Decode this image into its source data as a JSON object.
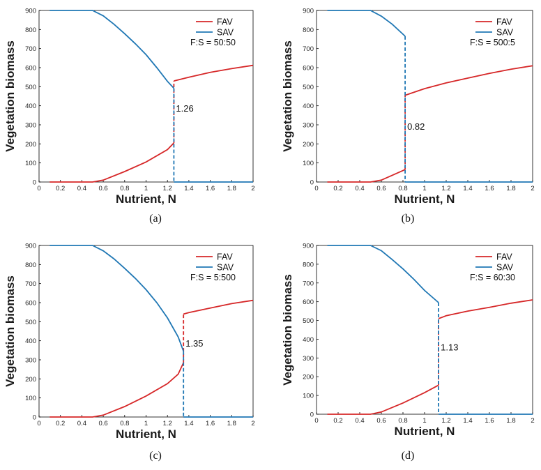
{
  "colors": {
    "fav": "#d62728",
    "sav": "#1f77b4",
    "axis": "#000000"
  },
  "chart_data": [
    {
      "caption": "(a)",
      "type": "line",
      "xlabel": "Nutrient, N",
      "ylabel": "Vegetation biomass",
      "xlim": [
        0,
        2
      ],
      "ylim": [
        0,
        900
      ],
      "xticks": [
        "0",
        "0.2",
        "0.4",
        "0.6",
        "0.8",
        "1",
        "1.2",
        "1.4",
        "1.6",
        "1.8",
        "2"
      ],
      "yticks": [
        "0",
        "100",
        "200",
        "300",
        "400",
        "500",
        "600",
        "700",
        "800",
        "900"
      ],
      "ratio_label": "F:S = 50:50",
      "threshold_label": "1.26",
      "threshold": 1.26,
      "series": [
        {
          "name": "FAV",
          "lower": {
            "x": [
              0.1,
              0.5,
              0.6,
              0.8,
              1.0,
              1.2,
              1.26
            ],
            "y": [
              0,
              0,
              10,
              55,
              105,
              170,
              205
            ]
          },
          "upper": {
            "x": [
              1.26,
              1.4,
              1.6,
              1.8,
              2.0
            ],
            "y": [
              530,
              550,
              575,
              595,
              612
            ]
          },
          "jump": {
            "x": [
              1.26,
              1.26
            ],
            "y": [
              205,
              530
            ]
          }
        },
        {
          "name": "SAV",
          "upper": {
            "x": [
              0.1,
              0.5,
              0.6,
              0.7,
              0.8,
              0.9,
              1.0,
              1.1,
              1.2,
              1.26
            ],
            "y": [
              900,
              900,
              872,
              828,
              778,
              725,
              668,
              600,
              528,
              492
            ]
          },
          "lower": {
            "x": [
              1.26,
              2.0
            ],
            "y": [
              0,
              0
            ]
          },
          "jump": {
            "x": [
              1.26,
              1.26
            ],
            "y": [
              492,
              0
            ]
          }
        }
      ]
    },
    {
      "caption": "(b)",
      "type": "line",
      "xlabel": "Nutrient, N",
      "ylabel": "Vegetation biomass",
      "xlim": [
        0,
        2
      ],
      "ylim": [
        0,
        900
      ],
      "xticks": [
        "0",
        "0.2",
        "0.4",
        "0.6",
        "0.8",
        "1",
        "1.2",
        "1.4",
        "1.6",
        "1.8",
        "2"
      ],
      "yticks": [
        "0",
        "100",
        "200",
        "300",
        "400",
        "500",
        "600",
        "700",
        "800",
        "900"
      ],
      "ratio_label": "F:S = 500:5",
      "threshold_label": "0.82",
      "threshold": 0.82,
      "series": [
        {
          "name": "FAV",
          "lower": {
            "x": [
              0.1,
              0.5,
              0.6,
              0.7,
              0.8,
              0.82
            ],
            "y": [
              0,
              0,
              10,
              35,
              60,
              65
            ]
          },
          "upper": {
            "x": [
              0.82,
              1.0,
              1.2,
              1.4,
              1.6,
              1.8,
              2.0
            ],
            "y": [
              455,
              490,
              520,
              545,
              570,
              592,
              610
            ]
          },
          "jump": {
            "x": [
              0.82,
              0.82
            ],
            "y": [
              65,
              455
            ]
          }
        },
        {
          "name": "SAV",
          "upper": {
            "x": [
              0.1,
              0.5,
              0.6,
              0.7,
              0.82
            ],
            "y": [
              900,
              900,
              870,
              828,
              765
            ]
          },
          "lower": {
            "x": [
              0.82,
              2.0
            ],
            "y": [
              0,
              0
            ]
          },
          "jump": {
            "x": [
              0.82,
              0.82
            ],
            "y": [
              765,
              0
            ]
          }
        }
      ]
    },
    {
      "caption": "(c)",
      "type": "line",
      "xlabel": "Nutrient, N",
      "ylabel": "Vegetation biomass",
      "xlim": [
        0,
        2
      ],
      "ylim": [
        0,
        900
      ],
      "xticks": [
        "0",
        "0.2",
        "0.4",
        "0.6",
        "0.8",
        "1",
        "1.2",
        "1.4",
        "1.6",
        "1.8",
        "2"
      ],
      "yticks": [
        "0",
        "100",
        "200",
        "300",
        "400",
        "500",
        "600",
        "700",
        "800",
        "900"
      ],
      "ratio_label": "F:S = 5:500",
      "threshold_label": "1.35",
      "threshold": 1.35,
      "series": [
        {
          "name": "FAV",
          "lower": {
            "x": [
              0.1,
              0.5,
              0.6,
              0.8,
              1.0,
              1.2,
              1.3,
              1.35
            ],
            "y": [
              0,
              0,
              10,
              55,
              110,
              175,
              225,
              285
            ]
          },
          "upper": {
            "x": [
              1.35,
              1.4,
              1.6,
              1.8,
              2.0
            ],
            "y": [
              540,
              548,
              572,
              595,
              612
            ]
          },
          "jump": {
            "x": [
              1.35,
              1.35
            ],
            "y": [
              285,
              540
            ]
          }
        },
        {
          "name": "SAV",
          "upper": {
            "x": [
              0.1,
              0.5,
              0.6,
              0.7,
              0.8,
              0.9,
              1.0,
              1.1,
              1.2,
              1.3,
              1.35
            ],
            "y": [
              900,
              900,
              872,
              830,
              780,
              727,
              668,
              600,
              520,
              420,
              345
            ]
          },
          "lower": {
            "x": [
              1.35,
              2.0
            ],
            "y": [
              0,
              0
            ]
          },
          "jump": {
            "x": [
              1.35,
              1.35
            ],
            "y": [
              345,
              0
            ]
          }
        }
      ]
    },
    {
      "caption": "(d)",
      "type": "line",
      "xlabel": "Nutrient, N",
      "ylabel": "Vegetation  biomass",
      "xlim": [
        0,
        2
      ],
      "ylim": [
        0,
        900
      ],
      "xticks": [
        "0",
        "0.2",
        "0.4",
        "0.6",
        "0.8",
        "1",
        "1.2",
        "1.4",
        "1.6",
        "1.8",
        "2"
      ],
      "yticks": [
        "0",
        "100",
        "200",
        "300",
        "400",
        "500",
        "600",
        "700",
        "800",
        "900"
      ],
      "ratio_label": "F:S = 60:30",
      "threshold_label": "1.13",
      "threshold": 1.13,
      "series": [
        {
          "name": "FAV",
          "lower": {
            "x": [
              0.1,
              0.5,
              0.6,
              0.8,
              1.0,
              1.13
            ],
            "y": [
              0,
              0,
              12,
              60,
              115,
              155
            ]
          },
          "upper": {
            "x": [
              1.13,
              1.2,
              1.4,
              1.6,
              1.8,
              2.0
            ],
            "y": [
              510,
              525,
              550,
              570,
              592,
              610
            ]
          },
          "jump": {
            "x": [
              1.13,
              1.13
            ],
            "y": [
              155,
              510
            ]
          }
        },
        {
          "name": "SAV",
          "upper": {
            "x": [
              0.1,
              0.5,
              0.6,
              0.7,
              0.8,
              0.9,
              1.0,
              1.13
            ],
            "y": [
              900,
              900,
              872,
              825,
              775,
              720,
              660,
              595
            ]
          },
          "lower": {
            "x": [
              1.13,
              2.0
            ],
            "y": [
              0,
              0
            ]
          },
          "jump": {
            "x": [
              1.13,
              1.13
            ],
            "y": [
              595,
              0
            ]
          }
        }
      ]
    }
  ]
}
